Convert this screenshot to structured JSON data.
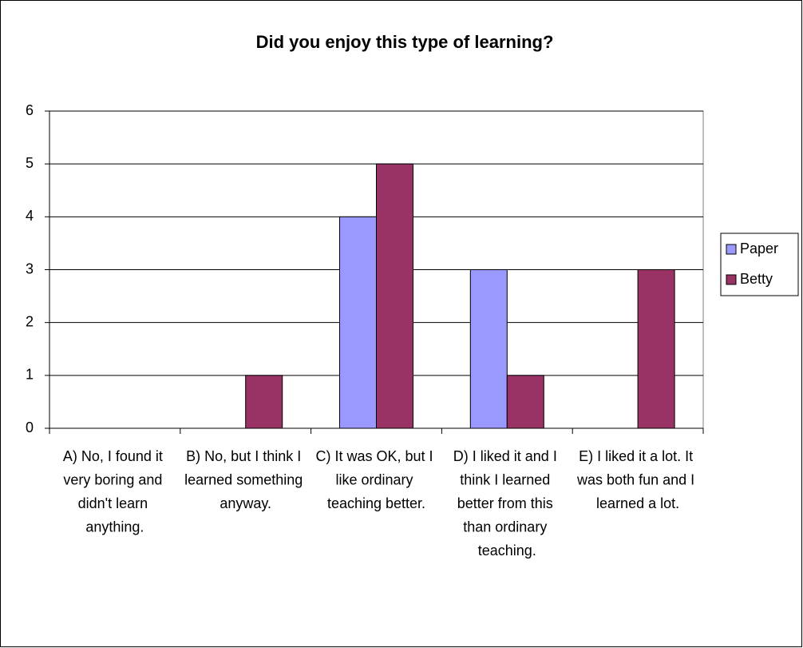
{
  "chart_data": {
    "type": "bar",
    "title": "Did you enjoy this type of learning?",
    "categories": [
      "A) No, I found it very boring and didn't learn anything.",
      "B) No, but I think I learned something anyway.",
      "C) It was OK, but I like ordinary teaching better.",
      "D) I liked it and I think I learned better from this than ordinary teaching.",
      "E) I liked it a lot. It was both fun and I learned a lot."
    ],
    "series": [
      {
        "name": "Paper",
        "color": "#9999ff",
        "values": [
          0,
          0,
          4,
          3,
          0
        ]
      },
      {
        "name": "Betty",
        "color": "#993366",
        "values": [
          0,
          1,
          5,
          1,
          3
        ]
      }
    ],
    "ylim": [
      0,
      6
    ],
    "yticks": [
      0,
      1,
      2,
      3,
      4,
      5,
      6
    ],
    "grid": true,
    "legend": "right"
  }
}
